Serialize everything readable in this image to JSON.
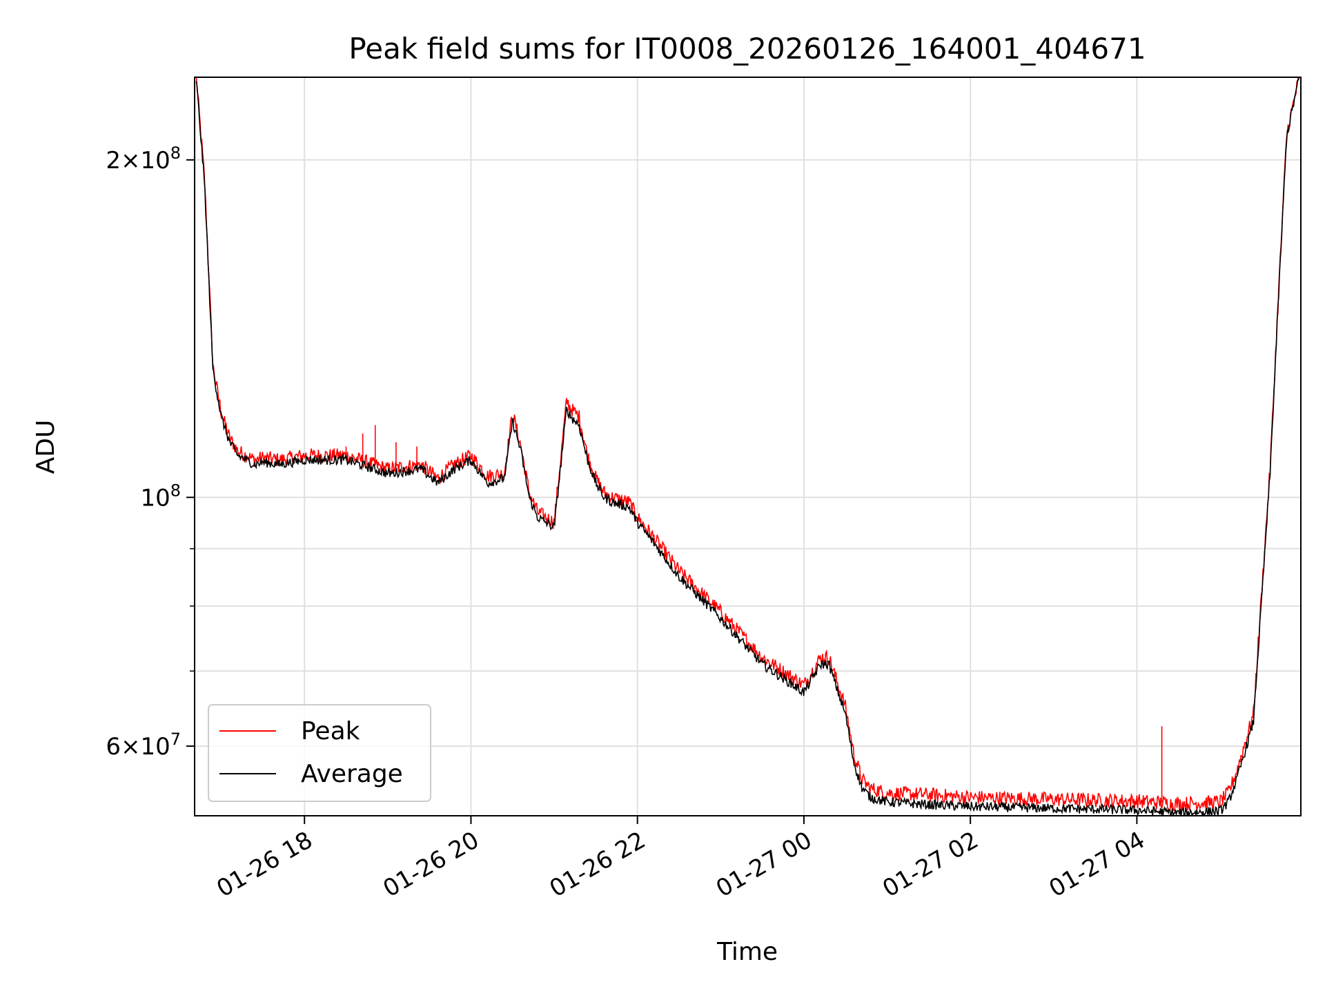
{
  "chart_data": {
    "type": "line",
    "title": "Peak field sums for IT0008_20260126_164001_404671",
    "xlabel": "Time",
    "ylabel": "ADU",
    "yscale": "log",
    "ylim": [
      52000000,
      237000000
    ],
    "xlim_hours": [
      -7.32,
      5.97
    ],
    "x_ticks": [
      {
        "hours": -6,
        "label": "01-26 18"
      },
      {
        "hours": -4,
        "label": "01-26 20"
      },
      {
        "hours": -2,
        "label": "01-26 22"
      },
      {
        "hours": 0,
        "label": "01-27 00"
      },
      {
        "hours": 2,
        "label": "01-27 02"
      },
      {
        "hours": 4,
        "label": "01-27 04"
      }
    ],
    "y_major_ticks": [
      {
        "value": 200000000,
        "mant": "2",
        "exp": "8"
      },
      {
        "value": 100000000,
        "mant": "",
        "exp": "8"
      },
      {
        "value": 60000000,
        "mant": "6",
        "exp": "7"
      }
    ],
    "y_tick_base": "10",
    "y_minor_ticks": [
      90000000,
      80000000,
      70000000,
      50000000
    ],
    "grid": true,
    "legend": {
      "location": "lower-left",
      "entries": [
        "Peak",
        "Average"
      ]
    },
    "series": [
      {
        "name": "Average",
        "color": "#000000",
        "x_hours": [
          -7.3,
          -7.2,
          -7.1,
          -7.0,
          -6.9,
          -6.8,
          -6.7,
          -6.6,
          -6.5,
          -6.3,
          -6.0,
          -5.5,
          -5.0,
          -4.6,
          -4.4,
          -4.2,
          -4.0,
          -3.8,
          -3.6,
          -3.5,
          -3.4,
          -3.3,
          -3.2,
          -3.0,
          -2.85,
          -2.8,
          -2.7,
          -2.6,
          -2.5,
          -2.4,
          -2.3,
          -2.1,
          -2.0,
          -1.8,
          -1.5,
          -1.0,
          -0.5,
          0.0,
          0.2,
          0.3,
          0.5,
          0.6,
          0.7,
          0.8,
          1.0,
          1.5,
          2.0,
          3.0,
          4.0,
          4.5,
          5.0,
          5.1,
          5.2,
          5.4,
          5.6,
          5.7,
          5.8,
          5.95
        ],
        "y_values": [
          236000000,
          190000000,
          130000000,
          118000000,
          112000000,
          109000000,
          108000000,
          107000000,
          107500000,
          107000000,
          108000000,
          108000000,
          105000000,
          106000000,
          103000000,
          106000000,
          108000000,
          103000000,
          104000000,
          117000000,
          110000000,
          100000000,
          96000000,
          94000000,
          120000000,
          118000000,
          116000000,
          108000000,
          103000000,
          100000000,
          99000000,
          98000000,
          95000000,
          91000000,
          85000000,
          78000000,
          71000000,
          67000000,
          71000000,
          71000000,
          64000000,
          58000000,
          55000000,
          54000000,
          53500000,
          53200000,
          53000000,
          52800000,
          52600000,
          52300000,
          52500000,
          53500000,
          56000000,
          63000000,
          105000000,
          150000000,
          210000000,
          237000000
        ]
      },
      {
        "name": "Peak",
        "color": "#ff0000",
        "x_hours": [
          -7.3,
          -7.2,
          -7.1,
          -7.0,
          -6.9,
          -6.8,
          -6.7,
          -6.6,
          -6.5,
          -6.3,
          -6.0,
          -5.5,
          -5.0,
          -4.6,
          -4.4,
          -4.2,
          -4.0,
          -3.8,
          -3.6,
          -3.5,
          -3.4,
          -3.3,
          -3.2,
          -3.0,
          -2.85,
          -2.8,
          -2.7,
          -2.6,
          -2.5,
          -2.4,
          -2.3,
          -2.1,
          -2.0,
          -1.8,
          -1.5,
          -1.0,
          -0.5,
          0.0,
          0.2,
          0.3,
          0.5,
          0.6,
          0.7,
          0.8,
          1.0,
          1.5,
          2.0,
          3.0,
          4.0,
          4.5,
          5.0,
          5.1,
          5.2,
          5.4,
          5.6,
          5.7,
          5.8,
          5.95
        ],
        "y_values": [
          237000000,
          192000000,
          131000000,
          119000000,
          113000000,
          110000000,
          109000000,
          108000000,
          108500000,
          108000000,
          109000000,
          109000000,
          106000000,
          107000000,
          104000000,
          107000000,
          109000000,
          104500000,
          105000000,
          119000000,
          111000000,
          101000000,
          97000000,
          95000000,
          122000000,
          120000000,
          118000000,
          109000000,
          104000000,
          101000000,
          100000000,
          99000000,
          96000000,
          92000000,
          86000000,
          79000000,
          72000000,
          68000000,
          72000000,
          72000000,
          65000000,
          59000000,
          56000000,
          55000000,
          54500000,
          54300000,
          54000000,
          53800000,
          53600000,
          53300000,
          53500000,
          54500000,
          57000000,
          64000000,
          106000000,
          151000000,
          211000000,
          237000000
        ]
      }
    ],
    "peak_spikes": [
      {
        "x_hours": -5.5,
        "y": 111000000
      },
      {
        "x_hours": -5.3,
        "y": 114000000
      },
      {
        "x_hours": -5.15,
        "y": 116000000
      },
      {
        "x_hours": -4.9,
        "y": 112000000
      },
      {
        "x_hours": -4.65,
        "y": 111000000
      },
      {
        "x_hours": 4.3,
        "y": 62500000
      }
    ]
  }
}
